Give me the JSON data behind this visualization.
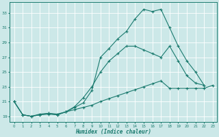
{
  "xlabel": "Humidex (Indice chaleur)",
  "bg_color": "#cce8e8",
  "line_color": "#1a7a6e",
  "grid_color": "#ffffff",
  "xlim": [
    -0.5,
    23.5
  ],
  "ylim": [
    18.2,
    34.5
  ],
  "yticks": [
    19,
    21,
    23,
    25,
    27,
    29,
    31,
    33
  ],
  "xticks": [
    0,
    1,
    2,
    3,
    4,
    5,
    6,
    7,
    8,
    9,
    10,
    11,
    12,
    13,
    14,
    15,
    16,
    17,
    18,
    19,
    20,
    21,
    22,
    23
  ],
  "line1_x": [
    0,
    1,
    2,
    3,
    4,
    5,
    6,
    7,
    8,
    9,
    10,
    11,
    12,
    13,
    14,
    15,
    16,
    17,
    18,
    19,
    20,
    21,
    22
  ],
  "line1_y": [
    21.0,
    19.2,
    19.0,
    19.2,
    19.3,
    19.2,
    19.6,
    20.2,
    20.8,
    22.5,
    27.0,
    28.2,
    29.5,
    30.5,
    32.2,
    33.5,
    33.2,
    33.5,
    31.0,
    28.5,
    26.5,
    25.0,
    23.2
  ],
  "line2_x": [
    0,
    1,
    2,
    3,
    4,
    5,
    6,
    7,
    8,
    9,
    10,
    11,
    12,
    13,
    14,
    15,
    16,
    17,
    18,
    19,
    20,
    21,
    22
  ],
  "line2_y": [
    21.0,
    19.2,
    19.0,
    19.2,
    19.4,
    19.2,
    19.6,
    20.3,
    21.5,
    23.0,
    25.0,
    26.5,
    27.5,
    28.5,
    28.5,
    28.0,
    27.5,
    27.0,
    28.5,
    26.5,
    24.5,
    23.5,
    23.2
  ],
  "line3_x": [
    0,
    1,
    2,
    3,
    4,
    5,
    6,
    7,
    8,
    9,
    10,
    11,
    12,
    13,
    14,
    15,
    16,
    17,
    18,
    19,
    20,
    21,
    22,
    23
  ],
  "line3_y": [
    21.0,
    19.2,
    19.0,
    19.3,
    19.4,
    19.3,
    19.6,
    19.9,
    20.2,
    20.5,
    21.0,
    21.4,
    21.8,
    22.2,
    22.6,
    23.0,
    23.4,
    23.8,
    22.8,
    22.8,
    22.8,
    22.8,
    22.8,
    23.2
  ]
}
